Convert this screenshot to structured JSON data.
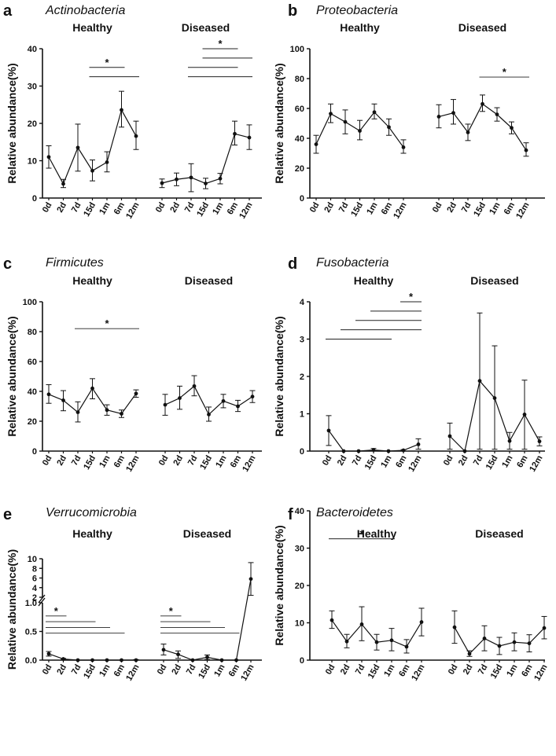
{
  "panels": [
    {
      "letter": "a",
      "title": "Actinobacteria",
      "ylabel": "Relative abundance(%)",
      "groups": [
        "Healthy",
        "Diseased"
      ],
      "timepoints": [
        "0d",
        "2d",
        "7d",
        "15d",
        "1m",
        "6m",
        "12m"
      ],
      "ylim": [
        0,
        40
      ],
      "yticks": [
        0,
        10,
        20,
        30,
        40
      ],
      "series": [
        {
          "name": "Healthy",
          "mean": [
            11,
            3.8,
            13.5,
            7.3,
            9.6,
            23.6,
            16.6
          ],
          "lo": [
            8,
            2.8,
            7.2,
            4.6,
            7,
            19,
            13
          ],
          "hi": [
            14,
            5,
            19.8,
            10.2,
            12.4,
            28.6,
            20.6
          ]
        },
        {
          "name": "Diseased",
          "mean": [
            4,
            5,
            5.5,
            3.9,
            5.2,
            17.2,
            16.2
          ],
          "lo": [
            2.8,
            3.3,
            1.7,
            2.5,
            3.8,
            14.2,
            13
          ],
          "hi": [
            5.1,
            6.7,
            9.2,
            5.3,
            6.6,
            20.6,
            19.6
          ]
        }
      ],
      "significance": [
        {
          "group": 0,
          "from": 3,
          "to": 6,
          "y": 32.5
        },
        {
          "group": 0,
          "from": 3,
          "to": 5,
          "y": 35
        },
        {
          "group": 1,
          "from": 2,
          "to": 6,
          "y": 32.5
        },
        {
          "group": 1,
          "from": 2,
          "to": 5,
          "y": 35
        },
        {
          "group": 1,
          "from": 3,
          "to": 6,
          "y": 37.5
        },
        {
          "group": 1,
          "from": 3,
          "to": 5,
          "y": 40
        }
      ],
      "star_label": "*"
    },
    {
      "letter": "b",
      "title": "Proteobacteria",
      "ylabel": "Relative abundance(%)",
      "groups": [
        "Healthy",
        "Diseased"
      ],
      "timepoints": [
        "0d",
        "2d",
        "7d",
        "15d",
        "1m",
        "6m",
        "12m"
      ],
      "ylim": [
        0,
        100
      ],
      "yticks": [
        0,
        20,
        40,
        60,
        80,
        100
      ],
      "series": [
        {
          "name": "Healthy",
          "mean": [
            36,
            56.5,
            51,
            45,
            57.5,
            47.5,
            34
          ],
          "lo": [
            30,
            50.5,
            43,
            39,
            53,
            42,
            30
          ],
          "hi": [
            42,
            63,
            59,
            52,
            63,
            53,
            39
          ]
        },
        {
          "name": "Diseased",
          "mean": [
            54.5,
            57,
            44,
            63,
            56,
            47,
            32
          ],
          "lo": [
            47,
            49.5,
            38.5,
            58,
            51.5,
            43,
            28
          ],
          "hi": [
            62.5,
            66,
            49.5,
            69,
            60.5,
            51,
            37
          ]
        }
      ],
      "significance": [
        {
          "group": 1,
          "from": 3,
          "to": 6,
          "y": 81
        }
      ],
      "star_label": "*"
    },
    {
      "letter": "c",
      "title": "Firmicutes",
      "ylabel": "Relative abundance(%)",
      "groups": [
        "Healthy",
        "Diseased"
      ],
      "timepoints": [
        "0d",
        "2d",
        "7d",
        "15d",
        "1m",
        "6m",
        "12m"
      ],
      "ylim": [
        0,
        100
      ],
      "yticks": [
        0,
        20,
        40,
        60,
        80,
        100
      ],
      "series": [
        {
          "name": "Healthy",
          "mean": [
            38,
            34,
            26,
            42,
            27.5,
            25,
            38.5
          ],
          "lo": [
            32,
            27,
            19.5,
            35,
            24,
            22.5,
            36
          ],
          "hi": [
            44.5,
            40.5,
            33,
            48.5,
            31,
            27.5,
            41
          ]
        },
        {
          "name": "Diseased",
          "mean": [
            31,
            35.5,
            43.5,
            24.5,
            33.5,
            30,
            36.5
          ],
          "lo": [
            24,
            28,
            37,
            20,
            29,
            26.5,
            32.5
          ],
          "hi": [
            38,
            43.5,
            50.5,
            29.5,
            38,
            34,
            40.5
          ]
        }
      ],
      "significance": [
        {
          "group": 0,
          "from": 2,
          "to": 6,
          "y": 82
        }
      ],
      "star_label": "*"
    },
    {
      "letter": "d",
      "title": "Fusobacteria",
      "ylabel": "Relative abundance(%)",
      "groups": [
        "Healthy",
        "Diseased"
      ],
      "timepoints": [
        "0d",
        "2d",
        "7d",
        "15d",
        "1m",
        "6m",
        "12m"
      ],
      "ylim": [
        0,
        4
      ],
      "yticks": [
        0,
        1,
        2,
        3,
        4
      ],
      "series": [
        {
          "name": "Healthy",
          "mean": [
            0.55,
            0.0,
            0.0,
            0.03,
            0.0,
            0.02,
            0.18
          ],
          "lo": [
            0.15,
            0.0,
            0.0,
            0.0,
            0.0,
            0.0,
            0.05
          ],
          "hi": [
            0.95,
            0.0,
            0.0,
            0.07,
            0.0,
            0.04,
            0.33
          ]
        },
        {
          "name": "Diseased",
          "mean": [
            0.4,
            0.0,
            1.88,
            1.42,
            0.27,
            0.98,
            0.26
          ],
          "lo": [
            0.05,
            0.0,
            0.05,
            0.05,
            0.05,
            0.05,
            0.14
          ],
          "hi": [
            0.75,
            0.0,
            3.7,
            2.82,
            0.5,
            1.9,
            0.38
          ]
        }
      ],
      "significance": [
        {
          "group": 0,
          "from": 0,
          "to": 4,
          "y": 3.0
        },
        {
          "group": 0,
          "from": 1,
          "to": 6,
          "y": 3.25
        },
        {
          "group": 0,
          "from": 2,
          "to": 6,
          "y": 3.5
        },
        {
          "group": 0,
          "from": 3,
          "to": 6,
          "y": 3.75
        },
        {
          "group": 0,
          "from": 5,
          "to": 6,
          "y": 4.0
        }
      ],
      "star_label": "*"
    },
    {
      "letter": "e",
      "title": "Verrucomicrobia",
      "ylabel": "Relative abundance(%)",
      "groups": [
        "Healthy",
        "Diseased"
      ],
      "timepoints": [
        "0d",
        "2d",
        "7d",
        "15d",
        "1m",
        "6m",
        "12m"
      ],
      "broken_axis": true,
      "ylim_lower": [
        0,
        1.0
      ],
      "yticks_lower": [
        0.0,
        0.5,
        1.0
      ],
      "ylim_upper": [
        2,
        10
      ],
      "yticks_upper": [
        2,
        4,
        6,
        8,
        10
      ],
      "series": [
        {
          "name": "Healthy",
          "mean": [
            0.11,
            0.02,
            0.0,
            0.0,
            0.0,
            0.0,
            0.0
          ],
          "lo": [
            0.07,
            0.01,
            0.0,
            0.0,
            0.0,
            0.0,
            0.0
          ],
          "hi": [
            0.15,
            0.03,
            0.0,
            0.0,
            0.0,
            0.0,
            0.01
          ]
        },
        {
          "name": "Diseased",
          "mean": [
            0.18,
            0.1,
            0.0,
            0.05,
            0.0,
            0.0,
            5.8
          ],
          "lo": [
            0.09,
            0.03,
            0.0,
            0.01,
            0.0,
            0.0,
            2.4
          ],
          "hi": [
            0.28,
            0.16,
            0.0,
            0.09,
            0.0,
            0.0,
            9.2
          ]
        }
      ],
      "significance": [
        {
          "group": 0,
          "from": 0,
          "to": 5,
          "y": 0.47
        },
        {
          "group": 0,
          "from": 0,
          "to": 4,
          "y": 0.57
        },
        {
          "group": 0,
          "from": 0,
          "to": 3,
          "y": 0.67
        },
        {
          "group": 0,
          "from": 0,
          "to": 1,
          "y": 0.77
        },
        {
          "group": 1,
          "from": 0,
          "to": 5,
          "y": 0.47
        },
        {
          "group": 1,
          "from": 0,
          "to": 4,
          "y": 0.57
        },
        {
          "group": 1,
          "from": 0,
          "to": 3,
          "y": 0.67
        },
        {
          "group": 1,
          "from": 0,
          "to": 1,
          "y": 0.77
        }
      ],
      "star_label": "*"
    },
    {
      "letter": "f",
      "title": "Bacteroidetes",
      "ylabel": "Relative abundance(%)",
      "groups": [
        "Healthy",
        "Diseased"
      ],
      "timepoints": [
        "0d",
        "2d",
        "7d",
        "15d",
        "1m",
        "6m",
        "12m"
      ],
      "ylim": [
        0,
        40
      ],
      "yticks": [
        0,
        10,
        20,
        30,
        40
      ],
      "series": [
        {
          "name": "Healthy",
          "mean": [
            10.7,
            5,
            9.6,
            4.8,
            5.3,
            3.6,
            10.2
          ],
          "lo": [
            8.5,
            3.3,
            5.2,
            2.7,
            2.5,
            1.9,
            6.5
          ],
          "hi": [
            13.2,
            6.9,
            14.3,
            6.9,
            8.5,
            5.5,
            13.9
          ]
        },
        {
          "name": "Diseased",
          "mean": [
            8.8,
            1.7,
            5.8,
            3.8,
            4.8,
            4.5,
            8.6
          ],
          "lo": [
            4.5,
            1.0,
            2.5,
            1.5,
            2.5,
            2.2,
            5.7
          ],
          "hi": [
            13.2,
            2.5,
            9.2,
            6.1,
            7.3,
            6.8,
            11.7
          ]
        }
      ],
      "significance": [
        {
          "group": 0,
          "from": 0,
          "to": 4,
          "y": 32.5
        }
      ],
      "star_label": "*"
    }
  ],
  "chart_data": [
    {
      "type": "line",
      "title": "Actinobacteria",
      "ylabel": "Relative abundance(%)",
      "categories": [
        "0d",
        "2d",
        "7d",
        "15d",
        "1m",
        "6m",
        "12m"
      ],
      "ylim": [
        0,
        40
      ],
      "series": [
        {
          "name": "Healthy",
          "values": [
            11,
            3.8,
            13.5,
            7.3,
            9.6,
            23.6,
            16.6
          ]
        },
        {
          "name": "Diseased",
          "values": [
            4,
            5,
            5.5,
            3.9,
            5.2,
            17.2,
            16.2
          ]
        }
      ]
    },
    {
      "type": "line",
      "title": "Proteobacteria",
      "ylabel": "Relative abundance(%)",
      "categories": [
        "0d",
        "2d",
        "7d",
        "15d",
        "1m",
        "6m",
        "12m"
      ],
      "ylim": [
        0,
        100
      ],
      "series": [
        {
          "name": "Healthy",
          "values": [
            36,
            56.5,
            51,
            45,
            57.5,
            47.5,
            34
          ]
        },
        {
          "name": "Diseased",
          "values": [
            54.5,
            57,
            44,
            63,
            56,
            47,
            32
          ]
        }
      ]
    },
    {
      "type": "line",
      "title": "Firmicutes",
      "ylabel": "Relative abundance(%)",
      "categories": [
        "0d",
        "2d",
        "7d",
        "15d",
        "1m",
        "6m",
        "12m"
      ],
      "ylim": [
        0,
        100
      ],
      "series": [
        {
          "name": "Healthy",
          "values": [
            38,
            34,
            26,
            42,
            27.5,
            25,
            38.5
          ]
        },
        {
          "name": "Diseased",
          "values": [
            31,
            35.5,
            43.5,
            24.5,
            33.5,
            30,
            36.5
          ]
        }
      ]
    },
    {
      "type": "line",
      "title": "Fusobacteria",
      "ylabel": "Relative abundance(%)",
      "categories": [
        "0d",
        "2d",
        "7d",
        "15d",
        "1m",
        "6m",
        "12m"
      ],
      "ylim": [
        0,
        4
      ],
      "series": [
        {
          "name": "Healthy",
          "values": [
            0.55,
            0.0,
            0.0,
            0.03,
            0.0,
            0.02,
            0.18
          ]
        },
        {
          "name": "Diseased",
          "values": [
            0.4,
            0.0,
            1.88,
            1.42,
            0.27,
            0.98,
            0.26
          ]
        }
      ]
    },
    {
      "type": "line",
      "title": "Verrucomicrobia",
      "ylabel": "Relative abundance(%)",
      "categories": [
        "0d",
        "2d",
        "7d",
        "15d",
        "1m",
        "6m",
        "12m"
      ],
      "ylim": [
        0,
        10
      ],
      "series": [
        {
          "name": "Healthy",
          "values": [
            0.11,
            0.02,
            0.0,
            0.0,
            0.0,
            0.0,
            0.0
          ]
        },
        {
          "name": "Diseased",
          "values": [
            0.18,
            0.1,
            0.0,
            0.05,
            0.0,
            0.0,
            5.8
          ]
        }
      ]
    },
    {
      "type": "line",
      "title": "Bacteroidetes",
      "ylabel": "Relative abundance(%)",
      "categories": [
        "0d",
        "2d",
        "7d",
        "15d",
        "1m",
        "6m",
        "12m"
      ],
      "ylim": [
        0,
        40
      ],
      "series": [
        {
          "name": "Healthy",
          "values": [
            10.7,
            5,
            9.6,
            4.8,
            5.3,
            3.6,
            10.2
          ]
        },
        {
          "name": "Diseased",
          "values": [
            8.8,
            1.7,
            5.8,
            3.8,
            4.8,
            4.5,
            8.6
          ]
        }
      ]
    }
  ]
}
